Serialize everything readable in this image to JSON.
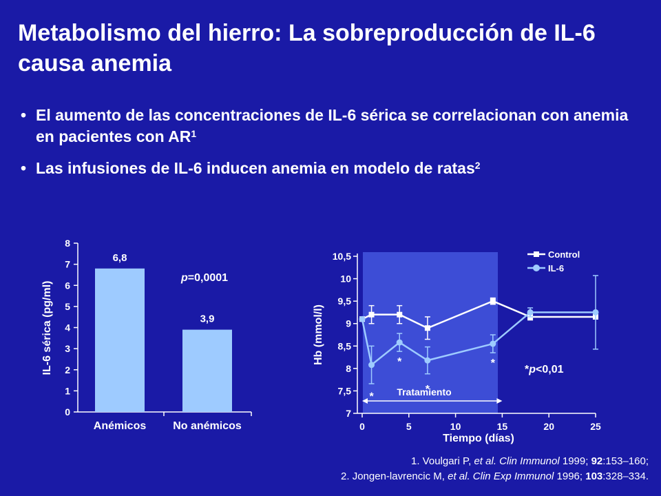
{
  "slide": {
    "title": "Metabolismo del hierro: La sobreproducción de IL-6 causa anemia",
    "bullets": [
      {
        "text": "El aumento de las concentraciones de IL-6 sérica se correlacionan con anemia en pacientes con AR",
        "sup": "1"
      },
      {
        "text": "Las infusiones de IL-6 inducen anemia en modelo de ratas",
        "sup": "2"
      }
    ],
    "references": [
      {
        "prefix": "1. Voulgari P, ",
        "etal": "et al.",
        "journal": " Clin Immunol",
        "year": " 1999; ",
        "vol": "92",
        "pages": ":153–160;"
      },
      {
        "prefix": "2. Jongen-lavrencic M, ",
        "etal": "et al.",
        "journal": " Clin Exp Immunol",
        "year": " 1996; ",
        "vol": "103",
        "pages": ":328–334."
      }
    ]
  },
  "chart_data": [
    {
      "type": "bar",
      "categories": [
        "Anémicos",
        "No anémicos"
      ],
      "values": [
        6.8,
        3.9
      ],
      "data_labels": [
        "6,8",
        "3,9"
      ],
      "ylabel": "IL-6 sérica (pg/ml)",
      "ylim": [
        0,
        8
      ],
      "yticks": [
        "0",
        "1",
        "2",
        "3",
        "4",
        "5",
        "6",
        "7",
        "8"
      ],
      "annotation": {
        "italic": "p",
        "rest": "=0,0001"
      },
      "bar_color": "#9ecbff"
    },
    {
      "type": "line",
      "xlabel": "Tiempo (días)",
      "ylabel": "Hb (mmol/l)",
      "xlim": [
        0,
        25
      ],
      "ylim": [
        7,
        10.5
      ],
      "xticks": [
        "0",
        "5",
        "10",
        "15",
        "20",
        "25"
      ],
      "xtick_values": [
        0,
        5,
        10,
        15,
        20,
        25
      ],
      "yticks": [
        "7",
        "7,5",
        "8",
        "8,5",
        "9",
        "9,5",
        "10",
        "10,5"
      ],
      "ytick_values": [
        7,
        7.5,
        8,
        8.5,
        9,
        9.5,
        10,
        10.5
      ],
      "series": [
        {
          "name": "Control",
          "color": "#ffffff",
          "marker": "square",
          "x": [
            0,
            1,
            4,
            7,
            14,
            18,
            25
          ],
          "y": [
            9.1,
            9.2,
            9.2,
            8.9,
            9.5,
            9.15,
            9.15
          ],
          "err": [
            0,
            0.2,
            0.2,
            0.25,
            0.07,
            0.07,
            0
          ]
        },
        {
          "name": "IL-6",
          "color": "#9ecbff",
          "marker": "circle",
          "x": [
            0,
            1,
            4,
            7,
            14,
            18,
            25
          ],
          "y": [
            9.1,
            8.08,
            8.58,
            8.18,
            8.55,
            9.25,
            9.25
          ],
          "err": [
            0,
            0.42,
            0.2,
            0.3,
            0.2,
            0.1,
            0.82
          ]
        }
      ],
      "treatment": {
        "label": "Tratamiento",
        "x_start": 0,
        "x_end": 15
      },
      "significance": [
        {
          "label": "*",
          "x": 1,
          "y": 7.42
        },
        {
          "label": "*",
          "x": 4,
          "y": 8.2
        },
        {
          "label": "*",
          "x": 7,
          "y": 7.58
        },
        {
          "label": "*",
          "x": 14,
          "y": 8.17
        }
      ],
      "annotation": {
        "text": "*p<0,01"
      },
      "band_color": "#3d4dd6"
    }
  ]
}
